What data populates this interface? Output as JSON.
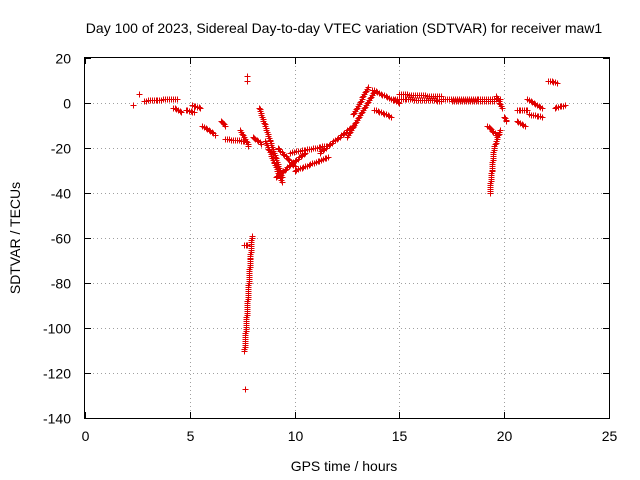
{
  "chart_data": {
    "type": "scatter",
    "title": "Day 100 of 2023, Sidereal Day-to-day VTEC variation (SDTVAR) for receiver maw1",
    "xlabel": "GPS time / hours",
    "ylabel": "SDTVAR / TECUs",
    "xlim": [
      0,
      25
    ],
    "ylim": [
      -140,
      20
    ],
    "xticks": [
      0,
      5,
      10,
      15,
      20,
      25
    ],
    "yticks": [
      -140,
      -120,
      -100,
      -80,
      -60,
      -40,
      -20,
      0,
      20
    ],
    "xtick_labels": [
      "0",
      "5",
      "10",
      "15",
      "20",
      "25"
    ],
    "ytick_labels": [
      "-140",
      "-120",
      "-100",
      "-80",
      "-60",
      "-40",
      "-20",
      "0",
      "20"
    ],
    "grid": true,
    "marker": "plus",
    "color": "#e00000",
    "series": [
      {
        "name": "maw1",
        "segments": [
          {
            "x": [
              2.3,
              2.3
            ],
            "y": [
              -1,
              -1
            ]
          },
          {
            "x": [
              2.6,
              2.6
            ],
            "y": [
              4,
              4
            ]
          },
          {
            "x": [
              2.8,
              4.4
            ],
            "y": [
              1,
              2
            ]
          },
          {
            "x": [
              4.2,
              4.6
            ],
            "y": [
              -2,
              -4
            ]
          },
          {
            "x": [
              4.8,
              5.2
            ],
            "y": [
              -3,
              -4
            ]
          },
          {
            "x": [
              5.1,
              5.5
            ],
            "y": [
              -1,
              -2
            ]
          },
          {
            "x": [
              5.6,
              6.2
            ],
            "y": [
              -10,
              -14
            ]
          },
          {
            "x": [
              6.5,
              6.7
            ],
            "y": [
              -8,
              -10
            ]
          },
          {
            "x": [
              6.7,
              7.7
            ],
            "y": [
              -16,
              -17
            ]
          },
          {
            "x": [
              7.4,
              7.8
            ],
            "y": [
              -12,
              -19
            ]
          },
          {
            "x": [
              7.65,
              7.65
            ],
            "y": [
              -127,
              -127
            ]
          },
          {
            "x": [
              7.6,
              7.95
            ],
            "y": [
              -110,
              -59
            ]
          },
          {
            "x": [
              7.6,
              7.75
            ],
            "y": [
              -63,
              -63
            ]
          },
          {
            "x": [
              7.75,
              7.75
            ],
            "y": [
              12,
              12
            ]
          },
          {
            "x": [
              7.75,
              7.75
            ],
            "y": [
              10,
              10
            ]
          },
          {
            "x": [
              8.0,
              8.4
            ],
            "y": [
              -15,
              -18
            ]
          },
          {
            "x": [
              8.3,
              9.4
            ],
            "y": [
              -2,
              -33
            ]
          },
          {
            "x": [
              8.6,
              9.4
            ],
            "y": [
              -17,
              -35
            ]
          },
          {
            "x": [
              9.1,
              10.5
            ],
            "y": [
              -33,
              -22
            ]
          },
          {
            "x": [
              9.2,
              10.0
            ],
            "y": [
              -20,
              -28
            ]
          },
          {
            "x": [
              10.0,
              11.6
            ],
            "y": [
              -30,
              -24
            ]
          },
          {
            "x": [
              9.8,
              11.5
            ],
            "y": [
              -22,
              -19
            ]
          },
          {
            "x": [
              11.2,
              12.8
            ],
            "y": [
              -22,
              -10
            ]
          },
          {
            "x": [
              12.5,
              13.8
            ],
            "y": [
              -15,
              5
            ]
          },
          {
            "x": [
              12.8,
              13.5
            ],
            "y": [
              -5,
              7
            ]
          },
          {
            "x": [
              13.7,
              15.0
            ],
            "y": [
              6,
              0
            ]
          },
          {
            "x": [
              13.8,
              14.6
            ],
            "y": [
              -3,
              -6
            ]
          },
          {
            "x": [
              14.6,
              17.0
            ],
            "y": [
              2,
              1
            ]
          },
          {
            "x": [
              15.0,
              17.0
            ],
            "y": [
              4,
              3
            ]
          },
          {
            "x": [
              17.0,
              19.8
            ],
            "y": [
              2,
              2
            ]
          },
          {
            "x": [
              17.5,
              19.5
            ],
            "y": [
              1,
              1
            ]
          },
          {
            "x": [
              19.6,
              19.9
            ],
            "y": [
              3,
              -2
            ]
          },
          {
            "x": [
              19.2,
              19.6
            ],
            "y": [
              -10,
              -14
            ]
          },
          {
            "x": [
              19.3,
              19.5
            ],
            "y": [
              -40,
              -20
            ]
          },
          {
            "x": [
              19.5,
              19.8
            ],
            "y": [
              -20,
              -12
            ]
          },
          {
            "x": [
              20.0,
              20.1
            ],
            "y": [
              -6,
              -8
            ]
          },
          {
            "x": [
              20.6,
              21.1
            ],
            "y": [
              -3,
              -3
            ]
          },
          {
            "x": [
              20.6,
              21.0
            ],
            "y": [
              -8,
              -10
            ]
          },
          {
            "x": [
              21.1,
              21.8
            ],
            "y": [
              2,
              -2
            ]
          },
          {
            "x": [
              21.2,
              21.8
            ],
            "y": [
              -5,
              -6
            ]
          },
          {
            "x": [
              22.1,
              22.5
            ],
            "y": [
              10,
              9
            ]
          },
          {
            "x": [
              22.4,
              22.9
            ],
            "y": [
              -2,
              -1
            ]
          }
        ]
      }
    ]
  }
}
